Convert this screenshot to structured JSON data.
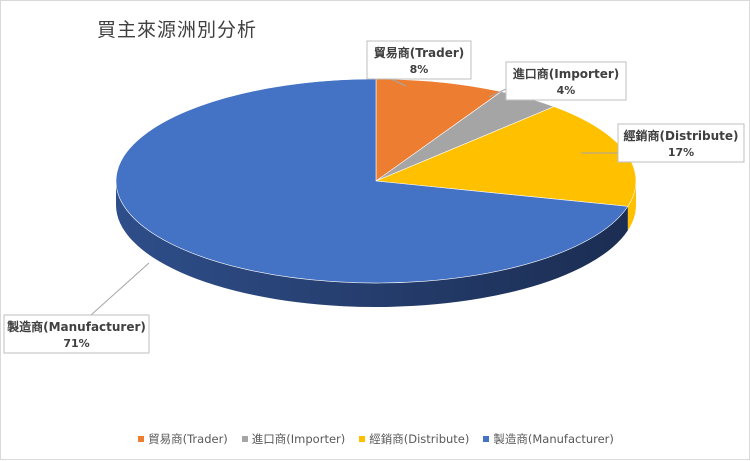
{
  "chart_data": {
    "type": "pie",
    "title": "買主來源洲別分析",
    "categories": [
      "貿易商(Trader)",
      "進口商(Importer)",
      "經銷商(Distribute)",
      "製造商(Manufacturer)"
    ],
    "values": [
      8,
      4,
      17,
      71
    ],
    "labels": [
      "8%",
      "4%",
      "17%",
      "71%"
    ],
    "colors": [
      "#ED7D31",
      "#A5A5A5",
      "#FFC000",
      "#4472C4"
    ],
    "style": "3d",
    "legend": "bottom"
  }
}
